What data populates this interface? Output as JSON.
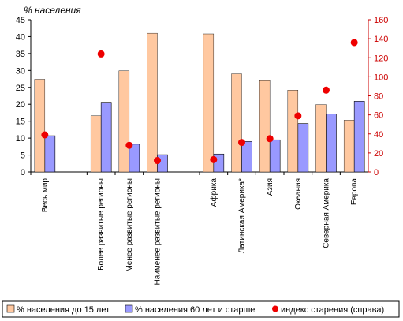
{
  "chart_data": {
    "type": "bar",
    "ylabel_left": "% населения",
    "ylim_left": [
      0,
      45
    ],
    "yticks_left": [
      0,
      5,
      10,
      15,
      20,
      25,
      30,
      35,
      40,
      45
    ],
    "ylim_right": [
      0,
      160
    ],
    "yticks_right": [
      0,
      20,
      40,
      60,
      80,
      100,
      120,
      140,
      160
    ],
    "categories": [
      "Весь мир",
      "Более развитые регионы",
      "Менее развитые регионы",
      "Наименее развитые регионы",
      "Африка",
      "Латинская Америка*",
      "Азия",
      "Океания",
      "Северная Америка",
      "Европа"
    ],
    "category_groups": [
      [
        0
      ],
      [
        1,
        2,
        3
      ],
      [
        4,
        5,
        6,
        7,
        8,
        9
      ]
    ],
    "series": [
      {
        "name": "% населения до 15 лет",
        "axis": "left",
        "kind": "bar",
        "color": "#ffc8a0",
        "values": [
          27.4,
          16.6,
          29.9,
          41.0,
          40.8,
          29.0,
          27.0,
          24.2,
          19.9,
          15.3
        ]
      },
      {
        "name": "% населения 60 лет и старше",
        "axis": "left",
        "kind": "bar",
        "color": "#9999ff",
        "values": [
          10.7,
          20.6,
          8.2,
          5.1,
          5.3,
          9.0,
          9.5,
          14.3,
          17.1,
          20.9
        ]
      },
      {
        "name": "индекс старения (справа)",
        "axis": "right",
        "kind": "scatter",
        "color": "#ee0000",
        "values": [
          39,
          124,
          28,
          12,
          13,
          31,
          35,
          59,
          86,
          136
        ]
      }
    ],
    "grid": false,
    "legend_position": "bottom"
  }
}
